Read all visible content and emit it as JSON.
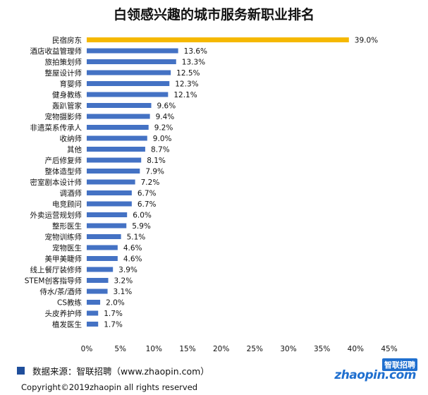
{
  "chart_data": {
    "type": "bar",
    "orientation": "horizontal",
    "title": "白领感兴趣的城市服务新职业排名",
    "categories": [
      "民宿房东",
      "酒店收益管理师",
      "旅拍策划师",
      "整屋设计师",
      "育婴师",
      "健身教练",
      "轰趴管家",
      "宠物摄影师",
      "非遗菜系传承人",
      "收纳师",
      "其他",
      "产后修复师",
      "整体造型师",
      "密室剧本设计师",
      "调酒师",
      "电竞顾问",
      "外卖运营规划师",
      "整形医生",
      "宠物训练师",
      "宠物医生",
      "美甲美睫师",
      "线上餐厅装修师",
      "STEM创客指导师",
      "侍水/茶/酒师",
      "CS教练",
      "头皮养护师",
      "植发医生"
    ],
    "values": [
      39.0,
      13.6,
      13.3,
      12.5,
      12.3,
      12.1,
      9.6,
      9.4,
      9.2,
      9.0,
      8.7,
      8.1,
      7.9,
      7.2,
      6.7,
      6.7,
      6.0,
      5.9,
      5.1,
      4.6,
      4.6,
      3.9,
      3.2,
      3.1,
      2.0,
      1.7,
      1.7
    ],
    "value_labels": [
      "39.0%",
      "13.6%",
      "13.3%",
      "12.5%",
      "12.3%",
      "12.1%",
      "9.6%",
      "9.4%",
      "9.2%",
      "9.0%",
      "8.7%",
      "8.1%",
      "7.9%",
      "7.2%",
      "6.7%",
      "6.7%",
      "6.0%",
      "5.9%",
      "5.1%",
      "4.6%",
      "4.6%",
      "3.9%",
      "3.2%",
      "3.1%",
      "2.0%",
      "1.7%",
      "1.7%"
    ],
    "xlim": [
      0,
      45
    ],
    "xticks": [
      "0%",
      "5%",
      "10%",
      "15%",
      "20%",
      "25%",
      "30%",
      "35%",
      "40%",
      "45%"
    ],
    "grid": false,
    "colors": {
      "highlight": "#F5B800",
      "bar": "#4472C4"
    }
  },
  "footer": {
    "source": "数据来源：智联招聘（www.zhaopin.com）",
    "copyright": "Copyright©2019zhaopin all rights reserved",
    "square_color": "#1F4E9B"
  },
  "logo": {
    "text_cn": "智联招聘",
    "text_en": "zhaopin.com"
  }
}
